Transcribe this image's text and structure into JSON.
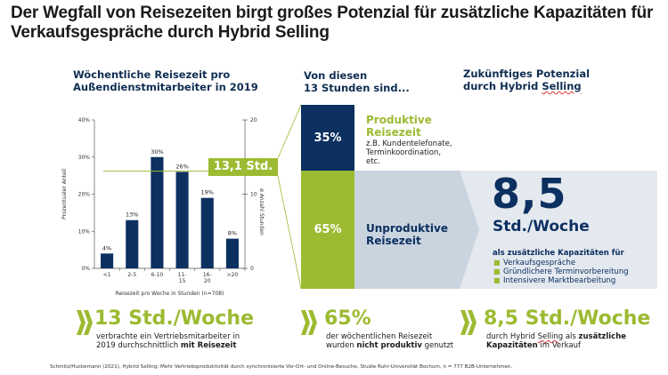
{
  "title": "Der Wegfall von Reisezeiten birgt großes Potenzial für zusätzliche Kapazitäten für Verkaufsgespräche durch Hybrid Selling",
  "left_section": {
    "heading_line1": "Wöchentliche Reisezeit pro",
    "heading_line2": "Außendienstmitarbeiter in 2019",
    "average_badge": "13,1 Std."
  },
  "middle_section": {
    "heading_line1": "Von diesen",
    "heading_line2": "13 Stunden sind...",
    "productive": {
      "percent": "35%",
      "title_line1": "Produktive",
      "title_line2": "Reisezeit",
      "desc_line1": "z.B. Kundentelefonate,",
      "desc_line2": "Terminkoordination,",
      "desc_line3": "etc."
    },
    "unproductive": {
      "percent": "65%",
      "title_line1": "Unproduktive",
      "title_line2": "Reisezeit"
    }
  },
  "right_section": {
    "heading_line1": "Zukünftiges Potenzial",
    "heading_line2_pre": "durch Hybrid ",
    "heading_line2_word": "Selling",
    "big_number": "8,5",
    "big_unit": "Std./Woche",
    "capacity_intro": "als zusätzliche Kapazitäten für",
    "capacity_items": [
      "Verkaufsgespräche",
      "Gründlichere Terminvorbereitung",
      "Intensivere Marktbearbeitung"
    ]
  },
  "bottom_stats": [
    {
      "big": "13 Std./Woche",
      "line1": "verbrachte ein Vertriebsmitarbeiter in",
      "line2_pre": "2019 durchschnittlich ",
      "line2_bold": "mit Reisezeit",
      "line2_post": ""
    },
    {
      "big": "65%",
      "line1": "der wöchentlichen Reisezeit",
      "line2_pre": "wurden ",
      "line2_bold": "nicht produktiv",
      "line2_post": " genutzt"
    },
    {
      "big": "8,5 Std./Woche",
      "line1_pre": "durch Hybrid ",
      "line1_word": "Selling",
      "line1_mid": " als ",
      "line1_bold": "zusätzliche",
      "line2_bold": "Kapazitäten",
      "line2_post": " im Verkauf"
    }
  ],
  "source": "Schmitz/Huckemann (2021), Hybrid Selling: Mehr Vertriebsproduktivität durch synchronisierte Vor-Ort- und Online-Besuche, Studie Ruhr-Universität Bochum, n = 777 B2B-Unternehmen.",
  "colors": {
    "navy": "#0c3060",
    "green": "#9cbb32",
    "band_light": "#c9d4df",
    "band_lighter": "#e4e9ef"
  },
  "chart_data": {
    "type": "bar",
    "title": "Wöchentliche Reisezeit pro Außendienstmitarbeiter in 2019",
    "categories": [
      "<1",
      "2-5",
      "6-10",
      "11-15",
      "16-20",
      ">20"
    ],
    "category_labels": [
      [
        "<1"
      ],
      [
        "2-5"
      ],
      [
        "6-10"
      ],
      [
        "11-",
        "15"
      ],
      [
        "16-",
        "20"
      ],
      [
        ">20"
      ]
    ],
    "values": [
      4,
      13,
      30,
      26,
      19,
      8
    ],
    "value_labels": [
      "4%",
      "13%",
      "30%",
      "26%",
      "19%",
      "8%"
    ],
    "xlabel": "Reisezeit pro Woche in Stunden (n=708)",
    "ylabel": "Prozentualer Anteil",
    "y2label": "ø Anzahl Stunden",
    "ylim": [
      0,
      40
    ],
    "yticks": [
      "0%",
      "10%",
      "20%",
      "30%",
      "40%"
    ],
    "y2lim": [
      0,
      20
    ],
    "y2ticks": [
      "0",
      "10",
      "20"
    ],
    "average_line_hours": 13.1,
    "grid": false
  }
}
